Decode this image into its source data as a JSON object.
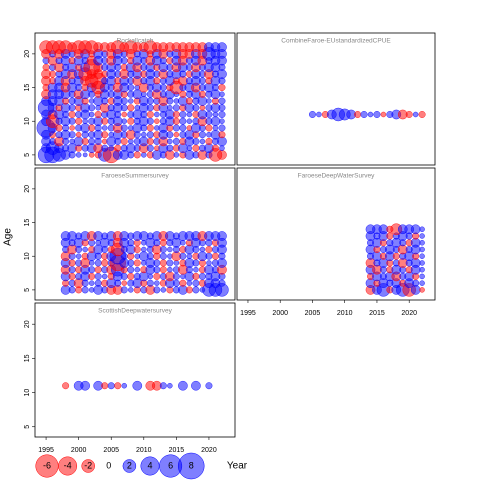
{
  "chart_data": {
    "type": "bubble",
    "x_label": "Year",
    "y_label": "Age",
    "xlim": [
      1993.3,
      2024
    ],
    "ylim": [
      3.5,
      23.1
    ],
    "xticks": [
      1995,
      2000,
      2005,
      2010,
      2015,
      2020
    ],
    "yticks": [
      5,
      10,
      15,
      20
    ],
    "pos_color": "#0000ff",
    "neg_color": "#ff0000",
    "legend": [
      -6,
      -4,
      -2,
      0,
      2,
      4,
      6,
      8
    ],
    "panels": [
      {
        "title": "Rockallcatch",
        "years": [
          1995,
          1996,
          1997,
          1998,
          1999,
          2000,
          2001,
          2002,
          2003,
          2004,
          2005,
          2006,
          2007,
          2008,
          2009,
          2010,
          2011,
          2012,
          2013,
          2014,
          2015,
          2016,
          2017,
          2018,
          2019,
          2020,
          2021,
          2022
        ],
        "ages": [
          5,
          6,
          7,
          8,
          9,
          10,
          11,
          12,
          13,
          14,
          15,
          16,
          17,
          18,
          19,
          20,
          21
        ],
        "values": [
          [
            3,
            3,
            2,
            1,
            0.5,
            0.3,
            0.2,
            -0.3,
            -0.5,
            2,
            -3,
            1,
            1,
            0.5,
            -0.5,
            0.3,
            -0.5,
            1,
            0.5,
            -1,
            0.3,
            -0.5,
            1,
            0.5,
            -1,
            0.5,
            -2,
            -1
          ],
          [
            1,
            2,
            1,
            0.5,
            1,
            -0.5,
            0.5,
            1,
            -1,
            0.5,
            0.3,
            -0.5,
            0.5,
            1,
            0.5,
            -1,
            0.5,
            -0.3,
            1,
            0.5,
            -0.5,
            1,
            0.3,
            -0.5,
            0.5,
            1,
            -0.5,
            0.3
          ],
          [
            1,
            0.5,
            -1,
            0.5,
            0.3,
            1,
            -0.5,
            0.5,
            0.5,
            -0.3,
            1,
            0.5,
            -0.5,
            0.3,
            0.5,
            1,
            -0.5,
            0.5,
            -1,
            0.3,
            0.5,
            -0.5,
            1,
            0.5,
            0.3,
            -0.5,
            0.5,
            1
          ],
          [
            1,
            -0.5,
            0.5,
            1,
            0.5,
            -0.3,
            0.5,
            0.5,
            1,
            -0.5,
            0.3,
            1,
            0.5,
            -1,
            0.5,
            0.3,
            0.5,
            -0.5,
            1,
            0.5,
            -0.3,
            0.5,
            1,
            -0.5,
            0.5,
            0.3,
            1,
            -0.5
          ],
          [
            4,
            1,
            -0.5,
            0.5,
            -0.3,
            0.5,
            1,
            -0.5,
            0.5,
            0.3,
            0.5,
            -1,
            0.5,
            0.3,
            1,
            0.5,
            -0.5,
            0.3,
            1,
            -0.5,
            0.5,
            0.5,
            -0.3,
            1,
            0.5,
            -0.5,
            0.3,
            0.5
          ],
          [
            1,
            -2,
            0.5,
            1,
            0.5,
            -0.5,
            0.3,
            0.5,
            1,
            -0.5,
            0.5,
            1,
            0.3,
            -0.5,
            0.5,
            1,
            0.5,
            -0.3,
            0.5,
            1,
            -0.5,
            0.5,
            0.3,
            0.5,
            -1,
            0.5,
            1,
            0.3
          ],
          [
            1,
            -1,
            1,
            0.5,
            -0.5,
            0.5,
            1,
            0.3,
            -0.5,
            0.5,
            1,
            0.5,
            -0.3,
            0.5,
            1,
            0.5,
            -0.5,
            0.3,
            0.5,
            1,
            -0.5,
            0.5,
            0.3,
            -0.5,
            1,
            0.5,
            0.3,
            0.5
          ],
          [
            3,
            1,
            -0.5,
            1,
            0.5,
            -0.5,
            1,
            0.5,
            0.3,
            -1,
            0.5,
            1,
            0.5,
            -0.5,
            0.3,
            1,
            0.5,
            -0.5,
            1,
            0.3,
            0.5,
            -0.5,
            1,
            0.5,
            -0.3,
            0.5,
            1,
            0.5
          ],
          [
            1,
            1,
            1,
            -0.5,
            0.5,
            1,
            -0.5,
            0.3,
            1,
            0.5,
            -0.5,
            1,
            0.5,
            0.3,
            -0.5,
            1,
            0.5,
            0.5,
            -1,
            0.5,
            0.3,
            1,
            -0.5,
            0.5,
            1,
            0.3,
            -0.5,
            0.5
          ],
          [
            -1,
            1,
            1,
            1,
            0.5,
            -1,
            1,
            0.5,
            -0.5,
            1,
            0.5,
            1,
            -0.5,
            0.5,
            1,
            0.3,
            0.5,
            -1,
            0.5,
            1,
            0.3,
            -0.5,
            0.5,
            1,
            -0.5,
            0.5,
            1,
            0.3
          ],
          [
            -0.5,
            1,
            1,
            -1,
            1,
            0.5,
            -0.5,
            1,
            -2,
            1,
            0.5,
            -1,
            1,
            0.5,
            0.3,
            -1,
            0.5,
            1,
            0.5,
            -0.5,
            -2,
            0.5,
            1,
            -1,
            0.5,
            1,
            0.5,
            -0.5
          ],
          [
            -1,
            -0.5,
            1,
            -1,
            0.5,
            1,
            -1,
            -2,
            -3,
            0.5,
            1,
            -0.5,
            1,
            0.5,
            -1,
            0.5,
            1,
            -0.5,
            0.5,
            1,
            -0.5,
            -1,
            0.5,
            1,
            0.5,
            -0.5,
            1,
            0.5
          ],
          [
            -1,
            -0.5,
            0.5,
            1,
            -1,
            1,
            -2,
            -1,
            -1,
            -0.5,
            1,
            0.5,
            -1,
            0.5,
            1,
            -0.5,
            1,
            0.5,
            -1,
            0.5,
            1,
            0.5,
            -0.5,
            1,
            0.5,
            -1,
            0.5,
            1
          ],
          [
            -0.5,
            0.5,
            -1,
            0.5,
            1,
            -0.5,
            1,
            -3,
            -1,
            0.5,
            1,
            0.5,
            -0.5,
            1,
            -1,
            0.5,
            1,
            -0.5,
            1,
            0.5,
            -1,
            1,
            0.5,
            -1,
            0.5,
            1,
            1,
            0.5
          ],
          [
            0.5,
            -1,
            0.5,
            1,
            -0.5,
            1,
            0.5,
            -1,
            1,
            0.5,
            -1,
            1,
            0.5,
            -0.5,
            1,
            0.5,
            -1,
            1,
            0.5,
            -0.5,
            1,
            -1,
            0.5,
            1,
            -1,
            0.5,
            1,
            1
          ],
          [
            -1,
            0.5,
            -1,
            1,
            0.5,
            -1,
            1,
            -0.5,
            1,
            0.5,
            -1,
            1,
            0.5,
            -1,
            0.5,
            1,
            -0.5,
            1,
            -1,
            0.5,
            1,
            -1,
            -1,
            1,
            -1,
            2,
            1,
            1
          ],
          [
            -2,
            -2,
            -2,
            -2,
            -1,
            -2,
            -2,
            -2,
            -1,
            -1,
            -1,
            -2,
            -1,
            -2,
            -1,
            -1,
            -2,
            -1,
            -1,
            -1,
            -1,
            -1,
            -1,
            -1,
            -1,
            1,
            1,
            1
          ]
        ]
      },
      {
        "title": "CombineFaroe-EUstandardizedCPUE",
        "years": [
          2005,
          2006,
          2007,
          2008,
          2009,
          2010,
          2011,
          2012,
          2013,
          2014,
          2015,
          2016,
          2017,
          2018,
          2019,
          2020,
          2021,
          2022
        ],
        "ages": [
          11
        ],
        "values": [
          [
            0.5,
            0.3,
            -0.5,
            1,
            2,
            1.5,
            1,
            -0.5,
            0.5,
            0.3,
            0.5,
            -0.3,
            0.5,
            1,
            -1,
            -0.5,
            0.3,
            -0.5
          ]
        ]
      },
      {
        "title": "FaroeseSummersurvey",
        "years": [
          1998,
          1999,
          2000,
          2001,
          2002,
          2003,
          2004,
          2005,
          2006,
          2007,
          2008,
          2009,
          2010,
          2011,
          2012,
          2013,
          2014,
          2015,
          2016,
          2017,
          2018,
          2019,
          2020,
          2021,
          2022
        ],
        "ages": [
          5,
          6,
          7,
          8,
          9,
          10,
          11,
          12,
          13
        ],
        "values": [
          [
            1,
            0.5,
            -0.5,
            0.5,
            0.3,
            1,
            0.5,
            -1,
            -1,
            0.5,
            0.3,
            -0.5,
            0.5,
            -1,
            0.5,
            0.3,
            -0.5,
            0.5,
            1,
            -0.5,
            0.5,
            0.3,
            2,
            2,
            2
          ],
          [
            -0.5,
            0.5,
            -1,
            0.5,
            0.3,
            0.5,
            -0.5,
            1,
            0.5,
            -0.3,
            0.5,
            1,
            -0.5,
            0.5,
            0.3,
            -0.5,
            1,
            0.5,
            -0.5,
            0.3,
            0.5,
            -0.5,
            1,
            1,
            0.5
          ],
          [
            1,
            -0.5,
            0.5,
            1,
            -0.5,
            0.5,
            0.3,
            -0.5,
            1,
            0.5,
            -0.5,
            0.5,
            1,
            0.3,
            -0.5,
            0.5,
            -1,
            0.5,
            0.3,
            1,
            -0.5,
            0.5,
            0.5,
            1,
            0.5
          ],
          [
            -1,
            0.5,
            -0.5,
            1,
            0.5,
            -0.5,
            0.5,
            -1,
            2,
            -0.5,
            0.5,
            0.3,
            -0.5,
            1,
            0.5,
            -0.5,
            0.3,
            0.5,
            -1,
            0.5,
            0.3,
            -0.5,
            1,
            0.5,
            -1
          ],
          [
            1,
            -0.5,
            0.5,
            -1,
            0.3,
            0.5,
            -0.5,
            0.5,
            -3,
            1,
            0.5,
            -0.5,
            0.3,
            1,
            0.5,
            -0.5,
            0.5,
            0.3,
            -0.5,
            1,
            0.5,
            -0.5,
            0.3,
            0.5,
            1
          ],
          [
            -1,
            0.5,
            0.3,
            -0.5,
            1,
            0.5,
            -0.5,
            1,
            3,
            0.5,
            -0.5,
            0.3,
            1,
            0.5,
            -0.5,
            0.5,
            0.3,
            -1,
            0.5,
            0.3,
            -0.5,
            1,
            0.5,
            -0.5,
            0.5
          ],
          [
            0.5,
            -1,
            0.5,
            0.3,
            -0.5,
            1,
            0.5,
            -0.5,
            -2,
            0.5,
            1,
            -0.5,
            0.3,
            0.5,
            -1,
            0.5,
            0.3,
            0.5,
            -0.5,
            1,
            0.5,
            0.3,
            -0.5,
            0.5,
            1
          ],
          [
            1,
            0.5,
            1,
            -0.5,
            0.5,
            0.3,
            1,
            0.5,
            -1,
            1,
            0.5,
            -0.5,
            0.3,
            1,
            0.5,
            -0.5,
            0.5,
            1,
            0.3,
            -0.5,
            1,
            0.5,
            0.5,
            -0.5,
            1
          ],
          [
            1,
            1,
            0.5,
            1,
            -1,
            1,
            0.5,
            1,
            -1,
            1,
            0.5,
            1,
            1,
            0.5,
            1,
            -1,
            1,
            0.5,
            1,
            1,
            1,
            -1,
            1,
            1,
            1
          ]
        ]
      },
      {
        "title": "FaroeseDeepWaterSurvey",
        "years": [
          2014,
          2015,
          2016,
          2017,
          2018,
          2019,
          2020,
          2021,
          2022
        ],
        "ages": [
          5,
          6,
          7,
          8,
          9,
          10,
          11,
          12,
          13,
          14
        ],
        "values": [
          [
            -1,
            1,
            2,
            -0.5,
            1,
            2,
            -2,
            1,
            -0.3
          ],
          [
            1,
            -0.5,
            1,
            0.5,
            1,
            -0.5,
            1,
            0.5,
            0.3
          ],
          [
            -0.5,
            1,
            0.5,
            1,
            -1,
            0.5,
            1,
            -0.5,
            0.3
          ],
          [
            1,
            -1,
            0.5,
            -0.5,
            1,
            0.5,
            -0.5,
            1,
            0.3
          ],
          [
            -1,
            0.5,
            1,
            -0.5,
            0.5,
            -1,
            0.5,
            1,
            0.3
          ],
          [
            0.5,
            1,
            -0.5,
            1,
            -0.5,
            0.5,
            1,
            -0.5,
            0.3
          ],
          [
            1,
            -0.5,
            0.5,
            1,
            0.5,
            -1,
            0.5,
            1,
            0.3
          ],
          [
            0.5,
            1,
            -0.5,
            0.5,
            1,
            0.5,
            -0.5,
            1,
            0.3
          ],
          [
            1,
            0.5,
            1,
            -0.5,
            0.5,
            1,
            0.5,
            -0.5,
            0.3
          ],
          [
            1,
            1,
            1,
            -0.5,
            -1.5,
            1,
            1,
            1,
            0.3
          ]
        ]
      },
      {
        "title": "ScottishDeepwatersurvey",
        "years": [
          1998,
          1999,
          2000,
          2001,
          2002,
          2003,
          2004,
          2005,
          2006,
          2007,
          2008,
          2009,
          2010,
          2011,
          2012,
          2013,
          2014,
          2015,
          2016,
          2017,
          2018,
          2019,
          2020,
          2021
        ],
        "ages": [
          11
        ],
        "values": [
          [
            -0.5,
            null,
            1,
            1,
            null,
            1,
            -0.5,
            0.5,
            -0.5,
            0.3,
            null,
            1,
            null,
            -1,
            -1,
            0.5,
            0.3,
            null,
            1,
            null,
            1,
            null,
            0.5,
            null
          ]
        ]
      }
    ]
  }
}
